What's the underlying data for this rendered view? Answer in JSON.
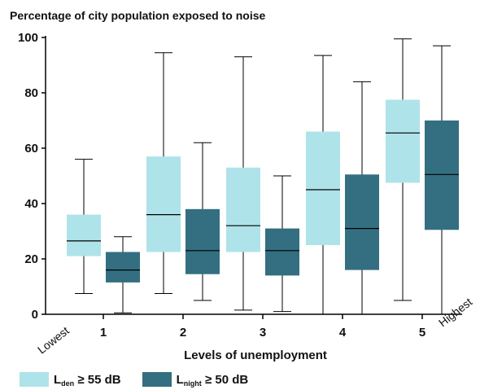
{
  "chart_data": {
    "type": "box",
    "title": "Percentage of city population exposed to noise",
    "xlabel": "Levels of unemployment",
    "ylabel": "",
    "ylim": [
      0,
      100
    ],
    "yticks": [
      0,
      20,
      40,
      60,
      80,
      100
    ],
    "categories": [
      "1",
      "2",
      "3",
      "4",
      "5"
    ],
    "end_labels": {
      "low": "Lowest",
      "high": "Highest"
    },
    "series": [
      {
        "name": "L_den ≥ 55 dB",
        "color": "#aee3ea",
        "boxes": [
          {
            "min": 7.5,
            "q1": 21,
            "median": 26.5,
            "q3": 36,
            "max": 56
          },
          {
            "min": 7.5,
            "q1": 22.5,
            "median": 36,
            "q3": 57,
            "max": 94.5
          },
          {
            "min": 1.5,
            "q1": 22.5,
            "median": 32,
            "q3": 53,
            "max": 93
          },
          {
            "min": 0,
            "q1": 25,
            "median": 45,
            "q3": 66,
            "max": 93.5
          },
          {
            "min": 5,
            "q1": 47.5,
            "median": 65.5,
            "q3": 77.5,
            "max": 99.5
          }
        ]
      },
      {
        "name": "L_night ≥ 50 dB",
        "color": "#336f80",
        "boxes": [
          {
            "min": 0.5,
            "q1": 11.5,
            "median": 16,
            "q3": 22.5,
            "max": 28
          },
          {
            "min": 5,
            "q1": 14.5,
            "median": 23,
            "q3": 38,
            "max": 62
          },
          {
            "min": 1,
            "q1": 14,
            "median": 23,
            "q3": 31,
            "max": 50
          },
          {
            "min": 0,
            "q1": 16,
            "median": 31,
            "q3": 50.5,
            "max": 84
          },
          {
            "min": 0,
            "q1": 30.5,
            "median": 50.5,
            "q3": 70,
            "max": 97
          }
        ]
      }
    ],
    "legend": [
      {
        "main": "L",
        "sub": "den",
        "rest": "≥ 55 dB"
      },
      {
        "main": "L",
        "sub": "night",
        "rest": "≥ 50 dB"
      }
    ],
    "legend_position": "bottom-left",
    "grid": false
  }
}
